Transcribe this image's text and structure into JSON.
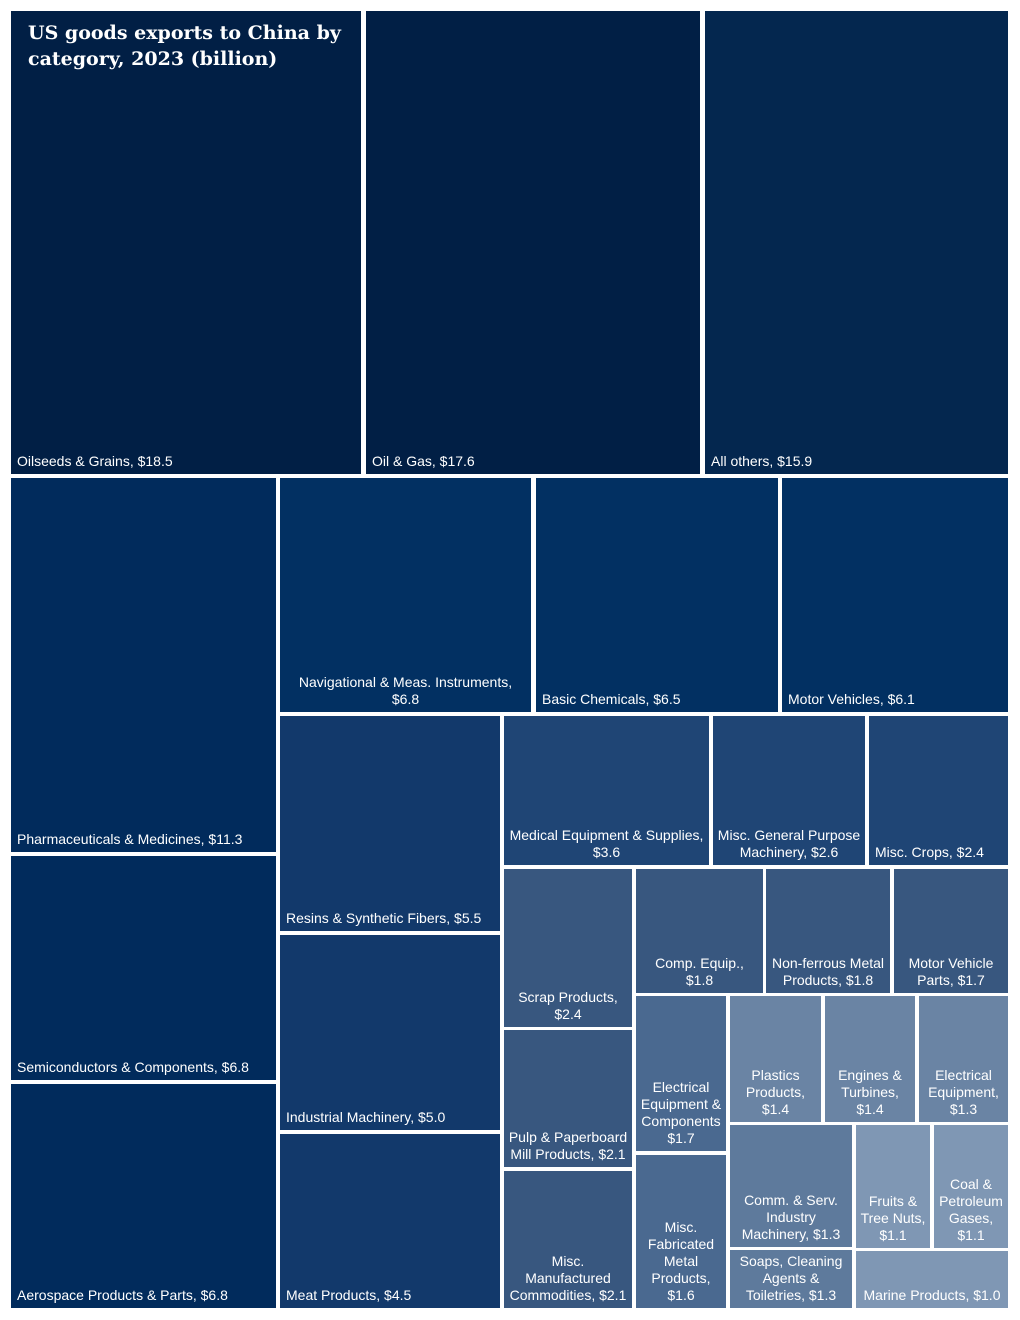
{
  "chart_data": {
    "type": "treemap",
    "title": "US goods exports to China by category, 2023 (billion)",
    "unit": "$ billion",
    "items": [
      {
        "label": "Oilseeds & Grains, $18.5",
        "category": "Oilseeds & Grains",
        "value": 18.5,
        "color": "#011f45"
      },
      {
        "label": "Oil & Gas, $17.6",
        "category": "Oil & Gas",
        "value": 17.6,
        "color": "#011f45"
      },
      {
        "label": "All others, $15.9",
        "category": "All others",
        "value": 15.9,
        "color": "#04274f"
      },
      {
        "label": "Pharmaceuticals & Medicines, $11.3",
        "category": "Pharmaceuticals & Medicines",
        "value": 11.3,
        "color": "#012b5c"
      },
      {
        "label": "Navigational & Meas. Instruments, $6.8",
        "category": "Navigational & Meas. Instruments",
        "value": 6.8,
        "color": "#023062"
      },
      {
        "label": "Basic Chemicals, $6.5",
        "category": "Basic Chemicals",
        "value": 6.5,
        "color": "#023062"
      },
      {
        "label": "Motor Vehicles, $6.1",
        "category": "Motor Vehicles",
        "value": 6.1,
        "color": "#023062"
      },
      {
        "label": "Semiconductors & Components, $6.8",
        "category": "Semiconductors & Components",
        "value": 6.8,
        "color": "#012b5c"
      },
      {
        "label": "Aerospace Products & Parts, $6.8",
        "category": "Aerospace Products & Parts",
        "value": 6.8,
        "color": "#012b5c"
      },
      {
        "label": "Resins & Synthetic Fibers, $5.5",
        "category": "Resins & Synthetic Fibers",
        "value": 5.5,
        "color": "#12396b"
      },
      {
        "label": "Industrial Machinery, $5.0",
        "category": "Industrial Machinery",
        "value": 5.0,
        "color": "#12396b"
      },
      {
        "label": "Meat Products, $4.5",
        "category": "Meat Products",
        "value": 4.5,
        "color": "#12396b"
      },
      {
        "label": "Medical Equipment & Supplies, $3.6",
        "category": "Medical Equipment & Supplies",
        "value": 3.6,
        "color": "#1f4575"
      },
      {
        "label": "Misc. General Purpose Machinery, $2.6",
        "category": "Misc. General Purpose Machinery",
        "value": 2.6,
        "color": "#1f4575"
      },
      {
        "label": "Misc. Crops, $2.4",
        "category": "Misc. Crops",
        "value": 2.4,
        "color": "#1f4575"
      },
      {
        "label": "Scrap Products, $2.4",
        "category": "Scrap Products",
        "value": 2.4,
        "color": "#38577f"
      },
      {
        "label": "Comp. Equip., $1.8",
        "category": "Comp. Equip.",
        "value": 1.8,
        "color": "#38577f"
      },
      {
        "label": "Non-ferrous Metal Products, $1.8",
        "category": "Non-ferrous Metal Products",
        "value": 1.8,
        "color": "#38577f"
      },
      {
        "label": "Motor Vehicle Parts, $1.7",
        "category": "Motor Vehicle Parts",
        "value": 1.7,
        "color": "#38577f"
      },
      {
        "label": "Pulp & Paperboard Mill Products, $2.1",
        "category": "Pulp & Paperboard Mill Products",
        "value": 2.1,
        "color": "#38577f"
      },
      {
        "label": "Misc. Manufactured Commodities, $2.1",
        "category": "Misc. Manufactured Commodities",
        "value": 2.1,
        "color": "#38577f"
      },
      {
        "label": "Electrical Equipment & Components $1.7",
        "category": "Electrical Equipment & Components",
        "value": 1.7,
        "color": "#4a6990"
      },
      {
        "label": "Misc. Fabricated Metal Products, $1.6",
        "category": "Misc. Fabricated Metal Products",
        "value": 1.6,
        "color": "#4a6990"
      },
      {
        "label": "Plastics Products, $1.4",
        "category": "Plastics Products",
        "value": 1.4,
        "color": "#6a84a4"
      },
      {
        "label": "Engines & Turbines, $1.4",
        "category": "Engines & Turbines",
        "value": 1.4,
        "color": "#6a84a4"
      },
      {
        "label": "Electrical Equipment, $1.3",
        "category": "Electrical Equipment",
        "value": 1.3,
        "color": "#6a84a4"
      },
      {
        "label": "Comm. & Serv. Industry Machinery, $1.3",
        "category": "Comm. & Serv. Industry Machinery",
        "value": 1.3,
        "color": "#5e7a9c"
      },
      {
        "label": "Soaps, Cleaning Agents & Toiletries, $1.3",
        "category": "Soaps, Cleaning Agents & Toiletries",
        "value": 1.3,
        "color": "#5e7a9c"
      },
      {
        "label": "Fruits & Tree Nuts, $1.1",
        "category": "Fruits & Tree Nuts",
        "value": 1.1,
        "color": "#7f97b4"
      },
      {
        "label": "Coal & Petroleum Gases, $1.1",
        "category": "Coal & Petroleum Gases",
        "value": 1.1,
        "color": "#7f97b4"
      },
      {
        "label": "Marine Products, $1.0",
        "category": "Marine Products",
        "value": 1.0,
        "color": "#7f97b4"
      }
    ]
  }
}
